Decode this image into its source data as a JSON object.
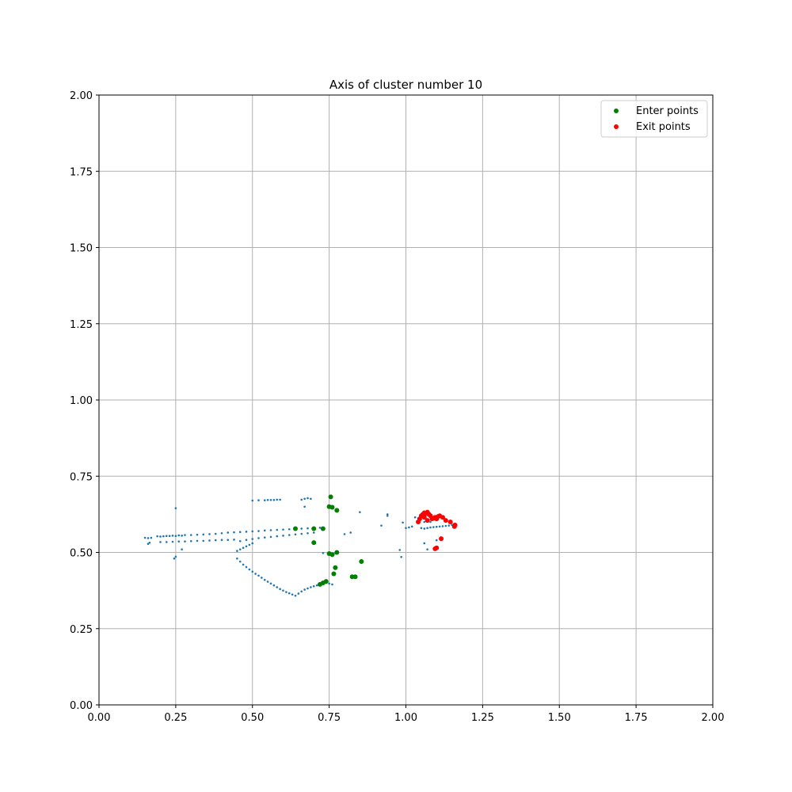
{
  "chart_data": {
    "type": "scatter",
    "title": "Axis of cluster number 10",
    "xlabel": "",
    "ylabel": "",
    "xlim": [
      0,
      2
    ],
    "ylim": [
      0,
      2
    ],
    "x_ticks": [
      "0.00",
      "0.25",
      "0.50",
      "0.75",
      "1.00",
      "1.25",
      "1.50",
      "1.75",
      "2.00"
    ],
    "y_ticks": [
      "0.00",
      "0.25",
      "0.50",
      "0.75",
      "1.00",
      "1.25",
      "1.50",
      "1.75",
      "2.00"
    ],
    "grid": true,
    "legend_position": "top-right",
    "colors": {
      "axis": "#1f77b4",
      "enter": "#008000",
      "exit": "#ff0000",
      "grid": "#b0b0b0"
    },
    "series": [
      {
        "key": "axis",
        "points": [
          [
            0.15,
            0.548
          ],
          [
            0.16,
            0.547
          ],
          [
            0.17,
            0.548
          ],
          [
            0.16,
            0.528
          ],
          [
            0.165,
            0.532
          ],
          [
            0.19,
            0.553
          ],
          [
            0.2,
            0.552
          ],
          [
            0.21,
            0.553
          ],
          [
            0.22,
            0.554
          ],
          [
            0.23,
            0.554
          ],
          [
            0.24,
            0.555
          ],
          [
            0.25,
            0.554
          ],
          [
            0.26,
            0.556
          ],
          [
            0.27,
            0.555
          ],
          [
            0.28,
            0.557
          ],
          [
            0.3,
            0.557
          ],
          [
            0.32,
            0.558
          ],
          [
            0.34,
            0.559
          ],
          [
            0.36,
            0.56
          ],
          [
            0.38,
            0.561
          ],
          [
            0.4,
            0.563
          ],
          [
            0.42,
            0.565
          ],
          [
            0.44,
            0.566
          ],
          [
            0.46,
            0.567
          ],
          [
            0.48,
            0.568
          ],
          [
            0.5,
            0.569
          ],
          [
            0.52,
            0.57
          ],
          [
            0.54,
            0.572
          ],
          [
            0.56,
            0.573
          ],
          [
            0.58,
            0.574
          ],
          [
            0.6,
            0.575
          ],
          [
            0.62,
            0.576
          ],
          [
            0.64,
            0.577
          ],
          [
            0.66,
            0.578
          ],
          [
            0.68,
            0.579
          ],
          [
            0.7,
            0.58
          ],
          [
            0.72,
            0.581
          ],
          [
            0.2,
            0.534
          ],
          [
            0.22,
            0.534
          ],
          [
            0.24,
            0.535
          ],
          [
            0.26,
            0.536
          ],
          [
            0.28,
            0.536
          ],
          [
            0.3,
            0.537
          ],
          [
            0.32,
            0.538
          ],
          [
            0.34,
            0.538
          ],
          [
            0.36,
            0.539
          ],
          [
            0.38,
            0.54
          ],
          [
            0.4,
            0.541
          ],
          [
            0.42,
            0.541
          ],
          [
            0.44,
            0.542
          ],
          [
            0.46,
            0.537
          ],
          [
            0.48,
            0.541
          ],
          [
            0.5,
            0.544
          ],
          [
            0.52,
            0.547
          ],
          [
            0.54,
            0.549
          ],
          [
            0.56,
            0.551
          ],
          [
            0.58,
            0.553
          ],
          [
            0.6,
            0.555
          ],
          [
            0.62,
            0.557
          ],
          [
            0.64,
            0.559
          ],
          [
            0.66,
            0.561
          ],
          [
            0.68,
            0.563
          ],
          [
            0.7,
            0.565
          ],
          [
            0.45,
            0.505
          ],
          [
            0.46,
            0.51
          ],
          [
            0.47,
            0.515
          ],
          [
            0.48,
            0.52
          ],
          [
            0.49,
            0.525
          ],
          [
            0.5,
            0.53
          ],
          [
            0.245,
            0.48
          ],
          [
            0.25,
            0.486
          ],
          [
            0.25,
            0.645
          ],
          [
            0.27,
            0.51
          ],
          [
            0.5,
            0.67
          ],
          [
            0.52,
            0.671
          ],
          [
            0.54,
            0.671
          ],
          [
            0.55,
            0.672
          ],
          [
            0.56,
            0.672
          ],
          [
            0.57,
            0.672
          ],
          [
            0.58,
            0.673
          ],
          [
            0.59,
            0.673
          ],
          [
            0.66,
            0.673
          ],
          [
            0.67,
            0.676
          ],
          [
            0.68,
            0.678
          ],
          [
            0.69,
            0.676
          ],
          [
            0.67,
            0.65
          ],
          [
            0.45,
            0.48
          ],
          [
            0.46,
            0.47
          ],
          [
            0.47,
            0.46
          ],
          [
            0.48,
            0.452
          ],
          [
            0.49,
            0.444
          ],
          [
            0.5,
            0.437
          ],
          [
            0.51,
            0.43
          ],
          [
            0.52,
            0.424
          ],
          [
            0.53,
            0.417
          ],
          [
            0.54,
            0.41
          ],
          [
            0.55,
            0.404
          ],
          [
            0.56,
            0.398
          ],
          [
            0.57,
            0.392
          ],
          [
            0.58,
            0.386
          ],
          [
            0.59,
            0.38
          ],
          [
            0.6,
            0.375
          ],
          [
            0.61,
            0.37
          ],
          [
            0.62,
            0.366
          ],
          [
            0.63,
            0.362
          ],
          [
            0.64,
            0.358
          ],
          [
            0.65,
            0.365
          ],
          [
            0.66,
            0.372
          ],
          [
            0.67,
            0.378
          ],
          [
            0.68,
            0.382
          ],
          [
            0.69,
            0.386
          ],
          [
            0.7,
            0.389
          ],
          [
            0.71,
            0.392
          ],
          [
            0.72,
            0.396
          ],
          [
            0.73,
            0.398
          ],
          [
            0.74,
            0.4
          ],
          [
            0.75,
            0.398
          ],
          [
            0.76,
            0.395
          ],
          [
            0.73,
            0.498
          ],
          [
            0.75,
            0.498
          ],
          [
            0.77,
            0.498
          ],
          [
            0.8,
            0.56
          ],
          [
            0.82,
            0.565
          ],
          [
            0.85,
            0.632
          ],
          [
            0.92,
            0.588
          ],
          [
            0.94,
            0.62
          ],
          [
            0.94,
            0.625
          ],
          [
            0.98,
            0.508
          ],
          [
            0.985,
            0.485
          ],
          [
            0.99,
            0.598
          ],
          [
            1.0,
            0.58
          ],
          [
            1.01,
            0.582
          ],
          [
            1.02,
            0.585
          ],
          [
            1.03,
            0.615
          ],
          [
            1.04,
            0.612
          ],
          [
            1.05,
            0.58
          ],
          [
            1.06,
            0.578
          ],
          [
            1.07,
            0.58
          ],
          [
            1.08,
            0.582
          ],
          [
            1.09,
            0.583
          ],
          [
            1.1,
            0.584
          ],
          [
            1.11,
            0.585
          ],
          [
            1.12,
            0.586
          ],
          [
            1.13,
            0.587
          ],
          [
            1.14,
            0.588
          ],
          [
            1.15,
            0.59
          ],
          [
            1.06,
            0.53
          ],
          [
            1.07,
            0.51
          ],
          [
            1.1,
            0.54
          ],
          [
            1.06,
            0.6
          ],
          [
            1.08,
            0.6
          ]
        ]
      },
      {
        "key": "enter",
        "label": "Enter points",
        "points": [
          [
            0.755,
            0.682
          ],
          [
            0.75,
            0.65
          ],
          [
            0.76,
            0.648
          ],
          [
            0.775,
            0.638
          ],
          [
            0.64,
            0.578
          ],
          [
            0.7,
            0.578
          ],
          [
            0.73,
            0.578
          ],
          [
            0.7,
            0.532
          ],
          [
            0.75,
            0.496
          ],
          [
            0.76,
            0.493
          ],
          [
            0.775,
            0.5
          ],
          [
            0.855,
            0.47
          ],
          [
            0.77,
            0.45
          ],
          [
            0.765,
            0.43
          ],
          [
            0.825,
            0.42
          ],
          [
            0.835,
            0.42
          ],
          [
            0.73,
            0.4
          ],
          [
            0.74,
            0.405
          ],
          [
            0.72,
            0.395
          ]
        ]
      },
      {
        "key": "exit",
        "label": "Exit points",
        "points": [
          [
            1.04,
            0.6
          ],
          [
            1.045,
            0.61
          ],
          [
            1.05,
            0.62
          ],
          [
            1.055,
            0.625
          ],
          [
            1.06,
            0.63
          ],
          [
            1.065,
            0.628
          ],
          [
            1.07,
            0.632
          ],
          [
            1.075,
            0.625
          ],
          [
            1.08,
            0.62
          ],
          [
            1.085,
            0.61
          ],
          [
            1.09,
            0.612
          ],
          [
            1.095,
            0.615
          ],
          [
            1.1,
            0.61
          ],
          [
            1.105,
            0.618
          ],
          [
            1.11,
            0.62
          ],
          [
            1.12,
            0.615
          ],
          [
            1.13,
            0.605
          ],
          [
            1.145,
            0.6
          ],
          [
            1.16,
            0.59
          ],
          [
            1.158,
            0.585
          ],
          [
            1.115,
            0.545
          ],
          [
            1.1,
            0.515
          ],
          [
            1.095,
            0.512
          ],
          [
            1.06,
            0.615
          ],
          [
            1.07,
            0.605
          ]
        ]
      }
    ]
  }
}
